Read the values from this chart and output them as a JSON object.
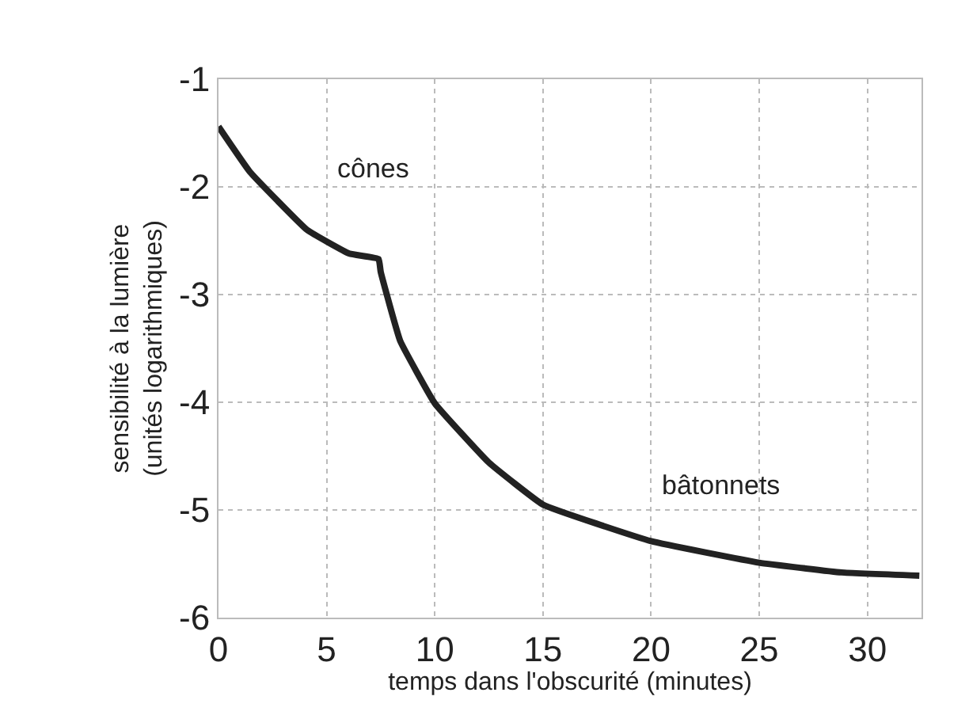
{
  "chart_data": {
    "type": "line",
    "xlabel": "temps dans l'obscurité (minutes)",
    "ylabel": "sensibilité à la lumière\n(unités logarithmiques)",
    "x": [
      0,
      1.45,
      4.1,
      6.05,
      7.4,
      7.5,
      8.4,
      10,
      12.5,
      15,
      20,
      25,
      28.8,
      32.4
    ],
    "series": [
      {
        "color": "#222222",
        "values": [
          -1.44,
          -1.86,
          -2.4,
          -2.62,
          -2.67,
          -2.79,
          -3.43,
          -4.01,
          -4.56,
          -4.95,
          -5.29,
          -5.49,
          -5.58,
          -5.61
        ]
      }
    ],
    "xlim": [
      0,
      32.5
    ],
    "ylim": [
      -6,
      -1
    ],
    "xticks": [
      0,
      5,
      10,
      15,
      20,
      25,
      30
    ],
    "yticks": [
      -6,
      -5,
      -4,
      -3,
      -2,
      -1
    ],
    "grid": true,
    "marker": "none",
    "line_style": "solid",
    "annotations": [
      "cônes",
      "bâtonnets"
    ]
  }
}
